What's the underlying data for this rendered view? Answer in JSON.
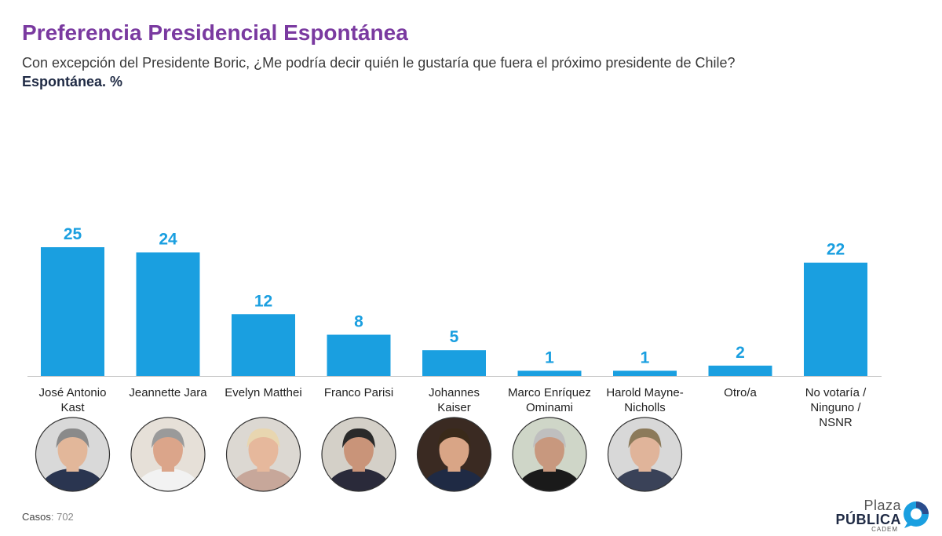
{
  "chart_data": {
    "type": "bar",
    "title": "Preferencia Presidencial Espontánea",
    "subtitle": "Con excepción del Presidente Boric, ¿Me podría decir quién le gustaría que fuera el próximo presidente de Chile?",
    "unit_label": "Espontánea. %",
    "categories": [
      [
        "José Antonio",
        "Kast"
      ],
      [
        "Jeannette Jara"
      ],
      [
        "Evelyn Matthei"
      ],
      [
        "Franco Parisi"
      ],
      [
        "Johannes",
        "Kaiser"
      ],
      [
        "Marco Enríquez",
        "Ominami"
      ],
      [
        "Harold Mayne-",
        "Nicholls"
      ],
      [
        "Otro/a"
      ],
      [
        "No votaría /",
        "Ninguno /",
        "NSNR"
      ]
    ],
    "values": [
      25,
      24,
      12,
      8,
      5,
      1,
      1,
      2,
      22
    ],
    "has_photo": [
      true,
      true,
      true,
      true,
      true,
      true,
      true,
      false,
      false
    ],
    "ylim": [
      0,
      25
    ],
    "bar_color": "#1a9fe0",
    "label_color": "#1a9fe0"
  },
  "footer": {
    "cases_label": "Casos",
    "cases_value": ": 702"
  },
  "logo": {
    "line1": "Plaza",
    "line2": "PÚBLICA",
    "line3": "CADEM",
    "accent": "#1a9fe0",
    "accent2": "#2b4c8c"
  }
}
